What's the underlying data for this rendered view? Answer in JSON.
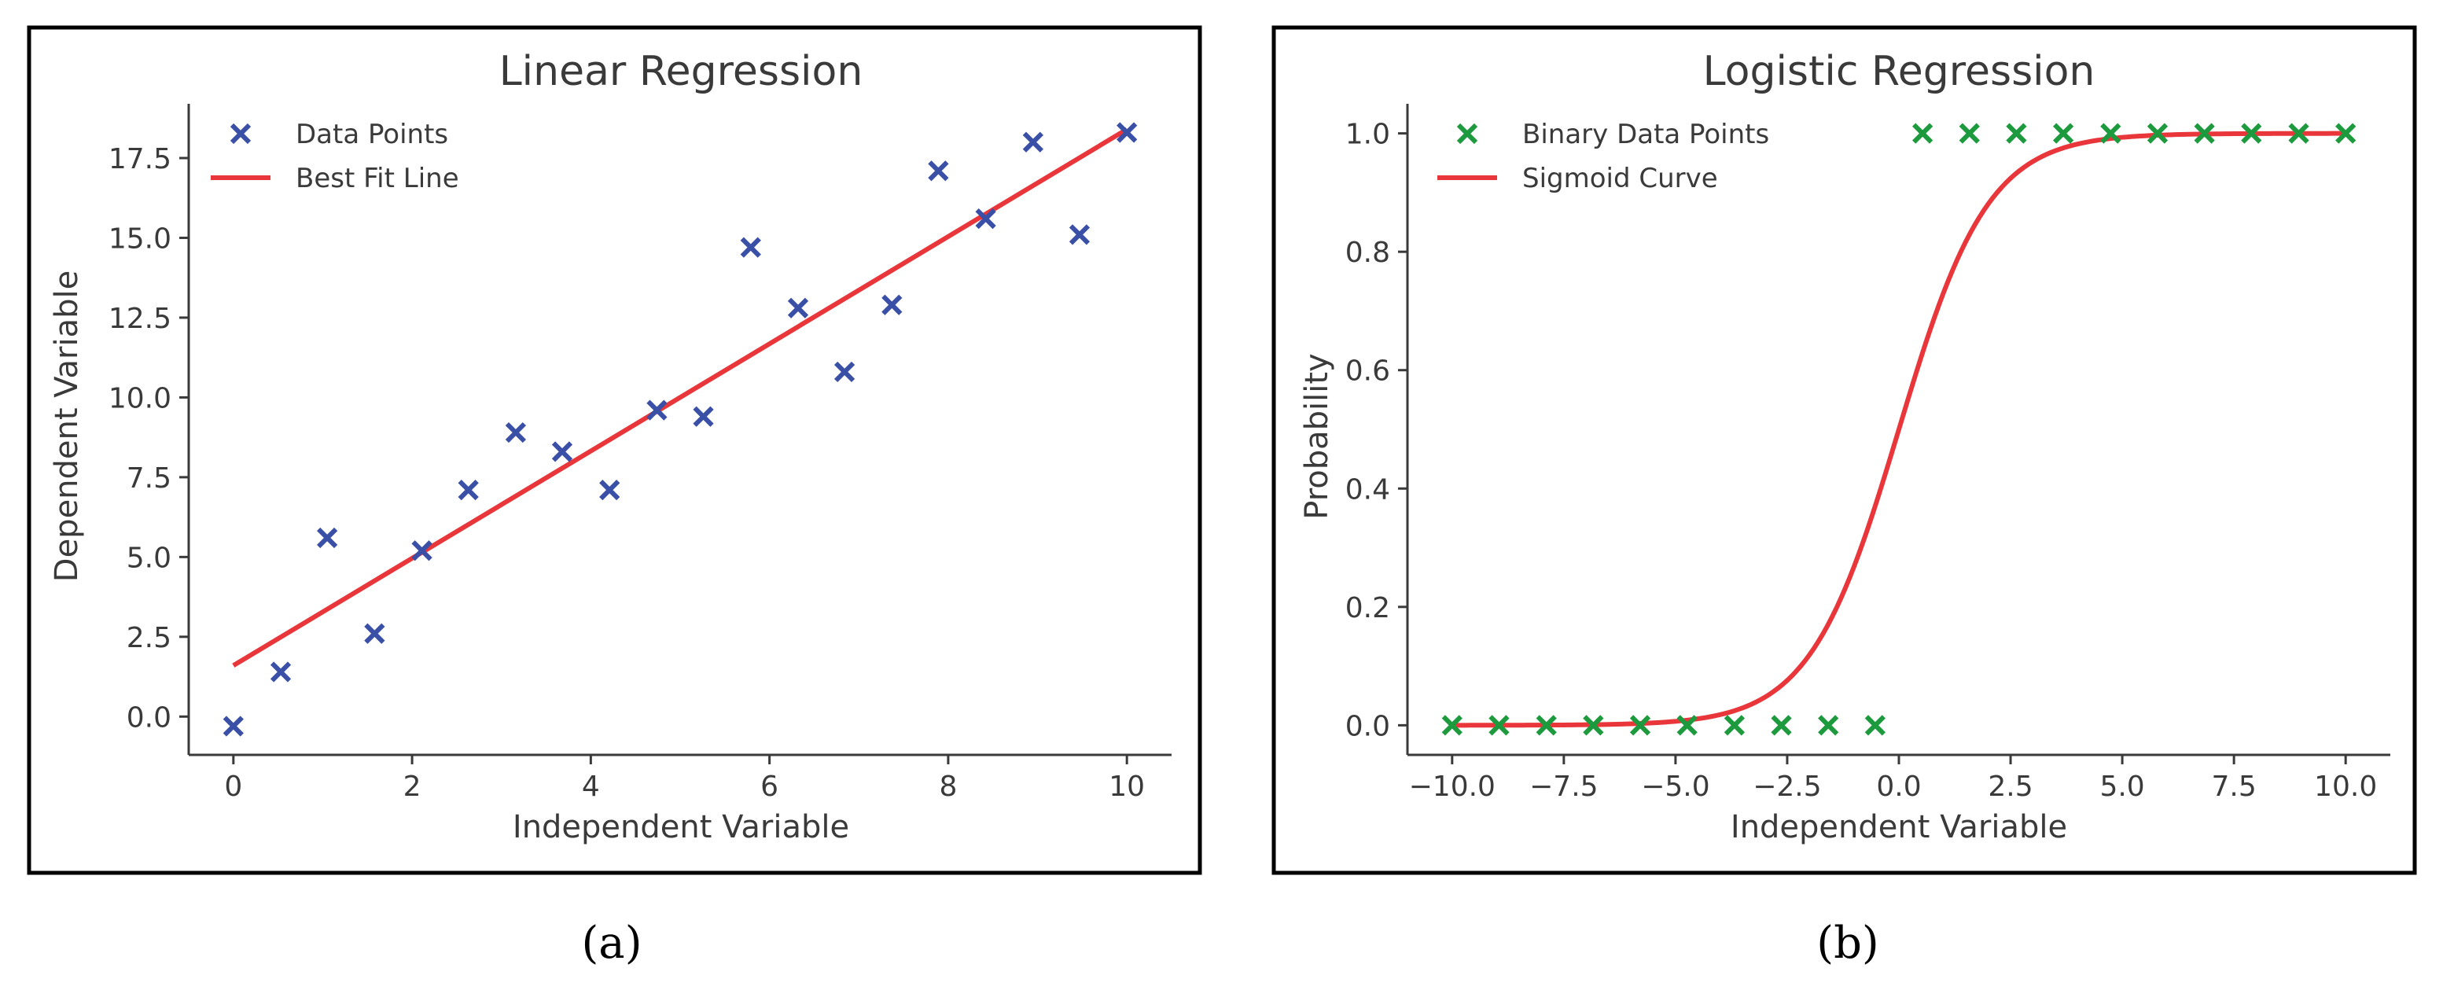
{
  "chart_data": [
    {
      "type": "scatter",
      "title": "Linear Regression",
      "xlabel": "Independent Variable",
      "ylabel": "Dependent Variable",
      "xlim": [
        -0.5,
        10.5
      ],
      "ylim": [
        -1.2,
        19.2
      ],
      "xticks": [
        0,
        2,
        4,
        6,
        8,
        10
      ],
      "xtick_labels": [
        "0",
        "2",
        "4",
        "6",
        "8",
        "10"
      ],
      "yticks": [
        0,
        2.5,
        5,
        7.5,
        10,
        12.5,
        15,
        17.5
      ],
      "ytick_labels": [
        "0.0",
        "2.5",
        "5.0",
        "7.5",
        "10.0",
        "12.5",
        "15.0",
        "17.5"
      ],
      "legend_position": "upper-left",
      "series": [
        {
          "name": "Data Points",
          "kind": "scatter",
          "marker": "x",
          "color": "#3a4fa6",
          "x": [
            0,
            0.53,
            1.05,
            1.58,
            2.11,
            2.63,
            3.16,
            3.68,
            4.21,
            4.74,
            5.26,
            5.79,
            6.32,
            6.84,
            7.37,
            7.89,
            8.42,
            8.95,
            9.47,
            10.0
          ],
          "y": [
            -0.3,
            1.4,
            5.6,
            2.6,
            5.2,
            7.1,
            8.9,
            8.3,
            7.1,
            9.6,
            9.4,
            14.7,
            12.8,
            10.8,
            12.9,
            17.1,
            15.6,
            18.0,
            15.1,
            18.3
          ]
        },
        {
          "name": "Best Fit Line",
          "kind": "line",
          "color": "#e8363b",
          "x": [
            0,
            10
          ],
          "y": [
            1.6,
            18.4
          ]
        }
      ]
    },
    {
      "type": "scatter",
      "title": "Logistic Regression",
      "xlabel": "Independent Variable",
      "ylabel": "Probability",
      "xlim": [
        -11.0,
        11.0
      ],
      "ylim": [
        -0.05,
        1.05
      ],
      "xticks": [
        -10,
        -7.5,
        -5,
        -2.5,
        0,
        2.5,
        5,
        7.5,
        10
      ],
      "xtick_labels": [
        "−10.0",
        "−7.5",
        "−5.0",
        "−2.5",
        "0.0",
        "2.5",
        "5.0",
        "7.5",
        "10.0"
      ],
      "yticks": [
        0,
        0.2,
        0.4,
        0.6,
        0.8,
        1.0
      ],
      "ytick_labels": [
        "0.0",
        "0.2",
        "0.4",
        "0.6",
        "0.8",
        "1.0"
      ],
      "legend_position": "upper-left",
      "sigmoid_steepness": 1,
      "series": [
        {
          "name": "Binary Data Points",
          "kind": "scatter",
          "marker": "x",
          "color": "#1e9a3e",
          "x": [
            -10.0,
            -8.95,
            -7.89,
            -6.84,
            -5.79,
            -4.74,
            -3.68,
            -2.63,
            -1.58,
            -0.53,
            0.53,
            1.58,
            2.63,
            3.68,
            4.74,
            5.79,
            6.84,
            7.89,
            8.95,
            10.0
          ],
          "y": [
            0,
            0,
            0,
            0,
            0,
            0,
            0,
            0,
            0,
            0,
            1,
            1,
            1,
            1,
            1,
            1,
            1,
            1,
            1,
            1
          ]
        },
        {
          "name": "Sigmoid Curve",
          "kind": "line",
          "color": "#e8363b",
          "x": [
            -10,
            10
          ]
        }
      ]
    }
  ],
  "captions": [
    "(a)",
    "(b)"
  ]
}
